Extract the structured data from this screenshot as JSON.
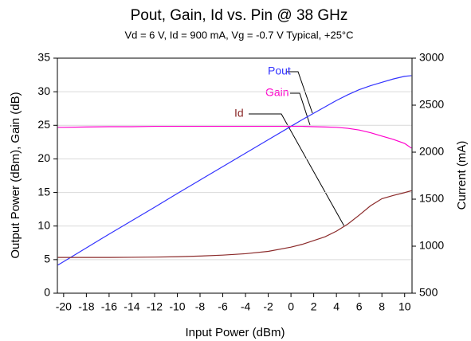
{
  "chart_data": {
    "type": "line",
    "title": "Pout, Gain, Id vs. Pin @ 38 GHz",
    "subtitle": "Vd = 6 V, Id = 900 mA, Vg = -0.7 V Typical, +25°C",
    "x_label": "Input Power (dBm)",
    "y_label": "Output Power (dBm), Gain (dB)",
    "y2_label": "Current (mA)",
    "x": [
      -20.5,
      -20,
      -18,
      -16,
      -14,
      -12,
      -10,
      -8,
      -6,
      -4,
      -2,
      0,
      1,
      2,
      3,
      4,
      5,
      6,
      7,
      8,
      9,
      10,
      10.6
    ],
    "series": [
      {
        "name": "Pout",
        "color": "#3333ff",
        "values": [
          4.2,
          4.7,
          6.75,
          8.8,
          10.8,
          12.8,
          14.85,
          16.85,
          18.85,
          20.85,
          22.85,
          24.85,
          25.85,
          26.8,
          27.75,
          28.7,
          29.55,
          30.3,
          30.9,
          31.4,
          31.9,
          32.3,
          32.4
        ]
      },
      {
        "name": "Gain",
        "color": "#ff00cc",
        "values": [
          24.7,
          24.7,
          24.75,
          24.8,
          24.8,
          24.85,
          24.85,
          24.85,
          24.85,
          24.85,
          24.85,
          24.85,
          24.85,
          24.8,
          24.75,
          24.7,
          24.55,
          24.3,
          23.9,
          23.4,
          22.9,
          22.3,
          21.6
        ]
      },
      {
        "name": "Id",
        "color": "#8b2a2a",
        "axis": "y2",
        "values": [
          880,
          880,
          880,
          880,
          882,
          884,
          888,
          895,
          905,
          920,
          945,
          990,
          1020,
          1060,
          1100,
          1160,
          1235,
          1330,
          1430,
          1505,
          1540,
          1570,
          1590
        ]
      }
    ],
    "xlim": [
      -20.55,
      10.65
    ],
    "xticks": [
      -20,
      -18,
      -16,
      -14,
      -12,
      -10,
      -8,
      -6,
      -4,
      -2,
      0,
      2,
      4,
      6,
      8,
      10
    ],
    "ylim": [
      0,
      35
    ],
    "yticks": [
      0,
      5,
      10,
      15,
      20,
      25,
      30,
      35
    ],
    "y2lim": [
      500,
      3000
    ],
    "y2ticks": [
      500,
      1000,
      1500,
      2000,
      2500,
      3000
    ],
    "grid": true
  }
}
